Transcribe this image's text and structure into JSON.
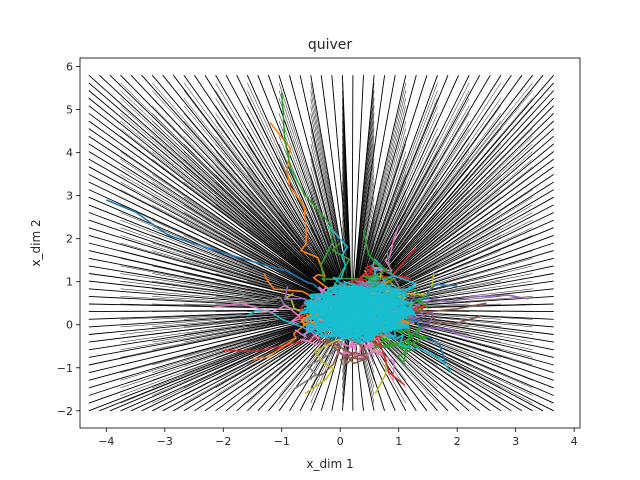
{
  "chart_data": {
    "type": "quiver",
    "title": "quiver",
    "xlabel": "x_dim 1",
    "ylabel": "x_dim 2",
    "xlim": [
      -4.45,
      4.1
    ],
    "ylim": [
      -2.4,
      6.2
    ],
    "xticks": [
      -4,
      -3,
      -2,
      -1,
      0,
      1,
      2,
      3,
      4
    ],
    "yticks": [
      -2,
      -1,
      0,
      1,
      2,
      3,
      4,
      5,
      6
    ],
    "grid": false,
    "vector_field": {
      "color": "#000000",
      "x_range": [
        -4.3,
        3.65
      ],
      "y_range": [
        -2.0,
        5.8
      ],
      "nx": 45,
      "ny": 45,
      "sink": [
        0.2,
        0.35
      ],
      "description": "vectors from each grid point pointing toward the central cluster"
    },
    "trajectories": {
      "count": 30,
      "colors": [
        "#1f77b4",
        "#ff7f0e",
        "#2ca02c",
        "#d62728",
        "#9467bd",
        "#8c564b",
        "#e377c2",
        "#7f7f7f",
        "#bcbd22",
        "#17becf"
      ],
      "cluster_center": [
        0.3,
        0.3
      ],
      "starts": [
        [
          -4.0,
          2.9
        ],
        [
          -1.2,
          4.7
        ],
        [
          -1.0,
          5.4
        ],
        [
          -2.0,
          -0.6
        ],
        [
          3.2,
          0.6
        ],
        [
          2.5,
          0.5
        ],
        [
          1.0,
          2.3
        ],
        [
          -0.8,
          -1.5
        ],
        [
          0.6,
          -1.6
        ],
        [
          -1.6,
          0.2
        ],
        [
          1.8,
          -0.9
        ],
        [
          -1.3,
          1.2
        ],
        [
          0.0,
          1.9
        ],
        [
          1.3,
          1.8
        ],
        [
          2.2,
          -0.3
        ],
        [
          -0.4,
          -1.2
        ],
        [
          0.9,
          -1.3
        ],
        [
          -1.8,
          0.9
        ],
        [
          1.6,
          1.2
        ],
        [
          -0.2,
          2.3
        ],
        [
          2.0,
          0.9
        ],
        [
          -1.5,
          -0.8
        ],
        [
          0.4,
          2.2
        ],
        [
          1.1,
          -1.4
        ],
        [
          -0.9,
          0.9
        ],
        [
          2.4,
          0.2
        ],
        [
          -2.2,
          0.4
        ],
        [
          0.8,
          1.7
        ],
        [
          -0.6,
          -1.6
        ],
        [
          1.9,
          -1.1
        ]
      ]
    }
  }
}
